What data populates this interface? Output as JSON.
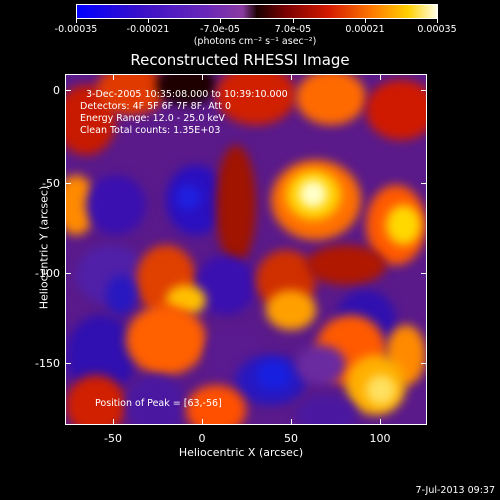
{
  "colorbar": {
    "labels": [
      "-0.00035",
      "-0.00021",
      "-7.0e-05",
      "7.0e-05",
      "0.00021",
      "0.00035"
    ],
    "units": "(photons cm⁻² s⁻¹ asec⁻²)"
  },
  "plot": {
    "title": "Reconstructed RHESSI Image",
    "info_lines": [
      "3-Dec-2005 10:35:08.000 to 10:39:10.000",
      "Detectors: 4F 5F 6F 7F 8F, Att 0",
      "Energy Range: 12.0 - 25.0 keV",
      "Clean    Total counts: 1.35E+03"
    ],
    "peak": "Position of Peak = [63,-56]",
    "x_axis": {
      "title": "Heliocentric X (arcsec)",
      "ticks": [
        "-50",
        "0",
        "50",
        "100"
      ]
    },
    "y_axis": {
      "title": "Heliocentric Y (arcsec)",
      "ticks": [
        "0",
        "-50",
        "-100",
        "-150"
      ]
    }
  },
  "footer": {
    "timestamp": "7-Jul-2013 09:37"
  },
  "colors": {
    "background": "#000000",
    "text": "#ffffff"
  }
}
